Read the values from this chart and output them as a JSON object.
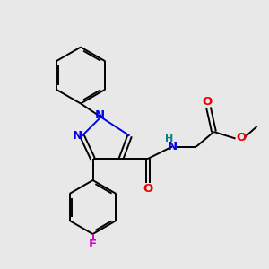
{
  "background_color": "#e8e8e8",
  "bond_color": "#000000",
  "N_color": "#0000ee",
  "O_color": "#ee0000",
  "F_color": "#cc00cc",
  "H_color": "#008080",
  "figsize": [
    3.0,
    3.0
  ],
  "dpi": 100,
  "xlim": [
    0,
    10
  ],
  "ylim": [
    0,
    10
  ]
}
